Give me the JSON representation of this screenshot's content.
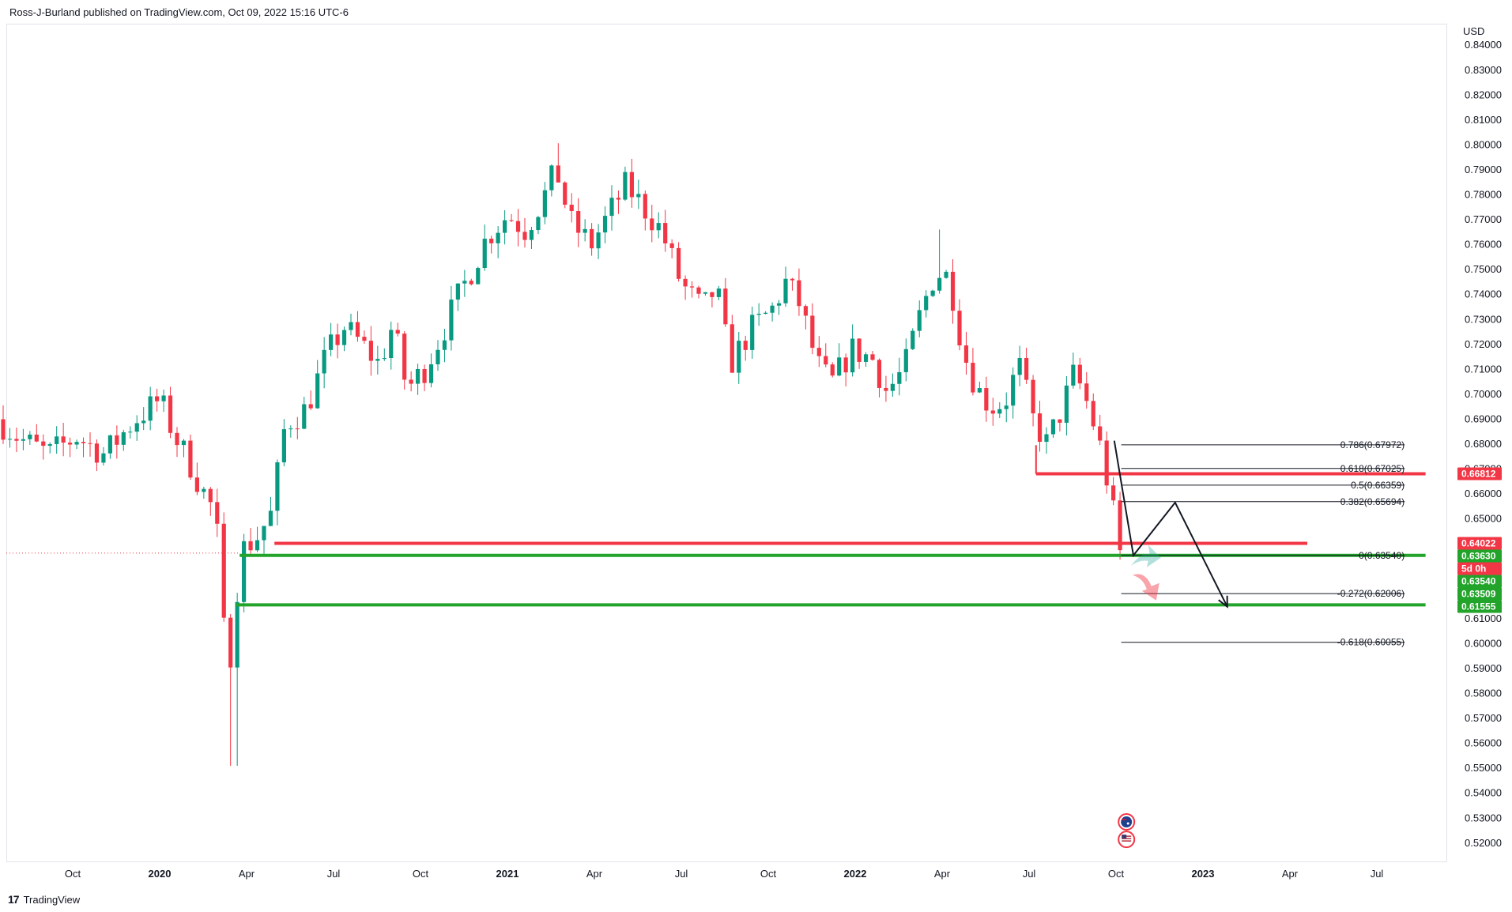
{
  "header": {
    "text": "Ross-J-Burland published on TradingView.com, Oct 09, 2022 15:16 UTC-6"
  },
  "footer": {
    "brand": "TradingView",
    "logo_icon": "tradingview-logo-icon"
  },
  "colors": {
    "up": "#26a69a",
    "up_body": "#089981",
    "down": "#f23645",
    "green_line": "#22a32a",
    "red_line": "#f23645",
    "fib_line": "#131722",
    "arrow": "#131722"
  },
  "chart_data": {
    "type": "candlestick",
    "instrument_currency": "USD",
    "y_axis": {
      "ylim": [
        0.515,
        0.848
      ],
      "ticks": [
        "0.84000",
        "0.83000",
        "0.82000",
        "0.81000",
        "0.80000",
        "0.79000",
        "0.78000",
        "0.77000",
        "0.76000",
        "0.75000",
        "0.74000",
        "0.73000",
        "0.72000",
        "0.71000",
        "0.70000",
        "0.69000",
        "0.68000",
        "0.67000",
        "0.66000",
        "0.65000",
        "0.64000",
        "0.63000",
        "0.62000",
        "0.61000",
        "0.60000",
        "0.59000",
        "0.58000",
        "0.57000",
        "0.56000",
        "0.55000",
        "0.54000",
        "0.53000",
        "0.52000"
      ]
    },
    "x_axis": {
      "ticks": [
        {
          "label": "Oct",
          "t": 2019.75
        },
        {
          "label": "2020",
          "t": 2020.0
        },
        {
          "label": "Apr",
          "t": 2020.25
        },
        {
          "label": "Jul",
          "t": 2020.5
        },
        {
          "label": "Oct",
          "t": 2020.75
        },
        {
          "label": "2021",
          "t": 2021.0
        },
        {
          "label": "Apr",
          "t": 2021.25
        },
        {
          "label": "Jul",
          "t": 2021.5
        },
        {
          "label": "Oct",
          "t": 2021.75
        },
        {
          "label": "2022",
          "t": 2022.0
        },
        {
          "label": "Apr",
          "t": 2022.25
        },
        {
          "label": "Jul",
          "t": 2022.5
        },
        {
          "label": "Oct",
          "t": 2022.75
        },
        {
          "label": "2023",
          "t": 2023.0
        },
        {
          "label": "Apr",
          "t": 2023.25
        },
        {
          "label": "Jul",
          "t": 2023.5
        }
      ]
    },
    "price_path": [
      [
        2019.55,
        0.69
      ],
      [
        2019.62,
        0.682
      ],
      [
        2019.7,
        0.676
      ],
      [
        2019.78,
        0.683
      ],
      [
        2019.86,
        0.676
      ],
      [
        2019.95,
        0.69
      ],
      [
        2020.02,
        0.698
      ],
      [
        2020.06,
        0.684
      ],
      [
        2020.1,
        0.674
      ],
      [
        2020.14,
        0.662
      ],
      [
        2020.18,
        0.652
      ],
      [
        2020.2,
        0.615
      ],
      [
        2020.215,
        0.578
      ],
      [
        2020.23,
        0.612
      ],
      [
        2020.26,
        0.638
      ],
      [
        2020.3,
        0.643
      ],
      [
        2020.34,
        0.652
      ],
      [
        2020.38,
        0.688
      ],
      [
        2020.44,
        0.694
      ],
      [
        2020.5,
        0.716
      ],
      [
        2020.55,
        0.727
      ],
      [
        2020.6,
        0.72
      ],
      [
        2020.65,
        0.712
      ],
      [
        2020.69,
        0.728
      ],
      [
        2020.73,
        0.702
      ],
      [
        2020.78,
        0.71
      ],
      [
        2020.83,
        0.724
      ],
      [
        2020.87,
        0.737
      ],
      [
        2020.92,
        0.751
      ],
      [
        2020.96,
        0.763
      ],
      [
        2021.02,
        0.772
      ],
      [
        2021.07,
        0.766
      ],
      [
        2021.12,
        0.778
      ],
      [
        2021.16,
        0.79
      ],
      [
        2021.2,
        0.769
      ],
      [
        2021.26,
        0.76
      ],
      [
        2021.31,
        0.772
      ],
      [
        2021.36,
        0.784
      ],
      [
        2021.41,
        0.775
      ],
      [
        2021.46,
        0.766
      ],
      [
        2021.52,
        0.744
      ],
      [
        2021.58,
        0.734
      ],
      [
        2021.62,
        0.743
      ],
      [
        2021.66,
        0.712
      ],
      [
        2021.72,
        0.726
      ],
      [
        2021.78,
        0.734
      ],
      [
        2021.82,
        0.745
      ],
      [
        2021.86,
        0.736
      ],
      [
        2021.91,
        0.712
      ],
      [
        2021.95,
        0.704
      ],
      [
        2022.01,
        0.718
      ],
      [
        2022.07,
        0.714
      ],
      [
        2022.11,
        0.701
      ],
      [
        2022.16,
        0.71
      ],
      [
        2022.21,
        0.734
      ],
      [
        2022.25,
        0.749
      ],
      [
        2022.29,
        0.747
      ],
      [
        2022.33,
        0.717
      ],
      [
        2022.37,
        0.702
      ],
      [
        2022.41,
        0.695
      ],
      [
        2022.45,
        0.697
      ],
      [
        2022.49,
        0.712
      ],
      [
        2022.53,
        0.69
      ],
      [
        2022.57,
        0.68
      ],
      [
        2022.61,
        0.693
      ],
      [
        2022.65,
        0.709
      ],
      [
        2022.69,
        0.695
      ],
      [
        2022.72,
        0.681
      ],
      [
        2022.74,
        0.668
      ],
      [
        2022.76,
        0.654
      ],
      [
        2022.775,
        0.6363
      ]
    ],
    "wick_extremes": {
      "low_2020": 0.551,
      "high_2021": 0.8007,
      "high_2022": 0.7661
    },
    "horizontal_levels": [
      {
        "price": 0.64022,
        "label": "0.64022",
        "color": "#f23645",
        "t_start": 2020.33,
        "t_end": 2023.3
      },
      {
        "price": 0.66812,
        "label": "0.66812",
        "color": "#f23645",
        "t_start": 2022.52,
        "t_end": 2023.64
      },
      {
        "price": 0.6354,
        "label": "0.63540",
        "color": "#22a32a",
        "t_start": 2020.23,
        "t_end": 2023.64
      },
      {
        "price": 0.61555,
        "label": "0.61555",
        "color": "#22a32a",
        "t_start": 2020.22,
        "t_end": 2023.64
      }
    ],
    "price_tags": [
      {
        "price": 0.66812,
        "label": "0.66812",
        "color": "#f23645"
      },
      {
        "price": 0.64022,
        "label": "0.64022",
        "color": "#f23645"
      },
      {
        "price": 0.6363,
        "label": "0.63630",
        "color": "#22a32a"
      },
      {
        "price": 0.6354,
        "label": "5d 0h",
        "color": "#f23645"
      },
      {
        "price": 0.6354,
        "label": "0.63540",
        "color": "#22a32a"
      },
      {
        "price": 0.63509,
        "label": "0.63509",
        "color": "#22a32a"
      },
      {
        "price": 0.61555,
        "label": "0.61555",
        "color": "#22a32a"
      }
    ],
    "fibonacci": {
      "t_start": 2022.765,
      "t_end": 2023.58,
      "levels": [
        {
          "ratio": "0.786",
          "price": 0.67972,
          "label": "0.786(0.67972)"
        },
        {
          "ratio": "0.618",
          "price": 0.67025,
          "label": "0.618(0.67025)"
        },
        {
          "ratio": "0.5",
          "price": 0.66359,
          "label": "0.5(0.66359)"
        },
        {
          "ratio": "0.382",
          "price": 0.65694,
          "label": "0.382(0.65694)"
        },
        {
          "ratio": "0",
          "price": 0.6354,
          "label": "0(0.63540)"
        },
        {
          "ratio": "-0.272",
          "price": 0.62006,
          "label": "-0.272(0.62006)"
        },
        {
          "ratio": "-0.618",
          "price": 0.60055,
          "label": "-0.618(0.60055)"
        }
      ]
    },
    "projection_path": [
      [
        2022.745,
        0.6814
      ],
      [
        2022.8,
        0.6354
      ],
      [
        2022.92,
        0.6566
      ],
      [
        2023.07,
        0.6148
      ]
    ],
    "event_icons": [
      {
        "t": 2022.78,
        "price": 0.5285,
        "icon": "australia-flag-icon"
      },
      {
        "t": 2022.78,
        "price": 0.5215,
        "icon": "us-flag-icon"
      }
    ]
  }
}
